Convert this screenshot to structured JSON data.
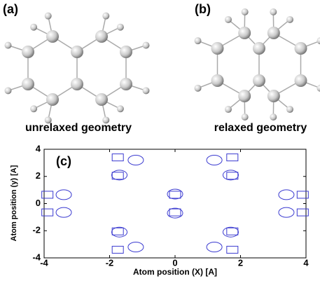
{
  "panels": [
    {
      "label": "(a)",
      "caption": "unrelaxed geometry"
    },
    {
      "label": "(b)",
      "caption": "relaxed geometry"
    }
  ],
  "chart_data": {
    "type": "scatter",
    "annotation": "(c)",
    "x_label": "Atom position (X) [A]",
    "y_label": "Atom position (y) [A]",
    "xlim": [
      -4,
      4
    ],
    "ylim": [
      -4,
      4
    ],
    "xticks": [
      -4,
      -2,
      0,
      2,
      4
    ],
    "yticks": [
      -4,
      -2,
      0,
      2,
      4
    ],
    "series": [
      {
        "marker": "square",
        "color": "#3a3ad0",
        "x": [
          -1.75,
          -1.75,
          1.75,
          1.75,
          -1.75,
          -1.75,
          1.75,
          1.75,
          -3.9,
          -3.9,
          3.9,
          3.9,
          0,
          0
        ],
        "values": [
          3.4,
          2.05,
          3.4,
          2.05,
          -2.05,
          -3.4,
          -2.05,
          -3.4,
          0.65,
          -0.65,
          0.65,
          -0.65,
          0.65,
          -0.65
        ]
      },
      {
        "marker": "circle",
        "color": "#3a3ad0",
        "x": [
          -1.2,
          1.2,
          -1.7,
          1.7,
          -1.7,
          1.7,
          -1.2,
          1.2,
          -3.4,
          -3.4,
          3.4,
          3.4,
          0,
          0
        ],
        "values": [
          3.2,
          3.2,
          2.1,
          2.1,
          -2.1,
          -2.1,
          -3.2,
          -3.2,
          0.65,
          -0.65,
          0.65,
          -0.65,
          0.7,
          -0.7
        ]
      }
    ]
  }
}
